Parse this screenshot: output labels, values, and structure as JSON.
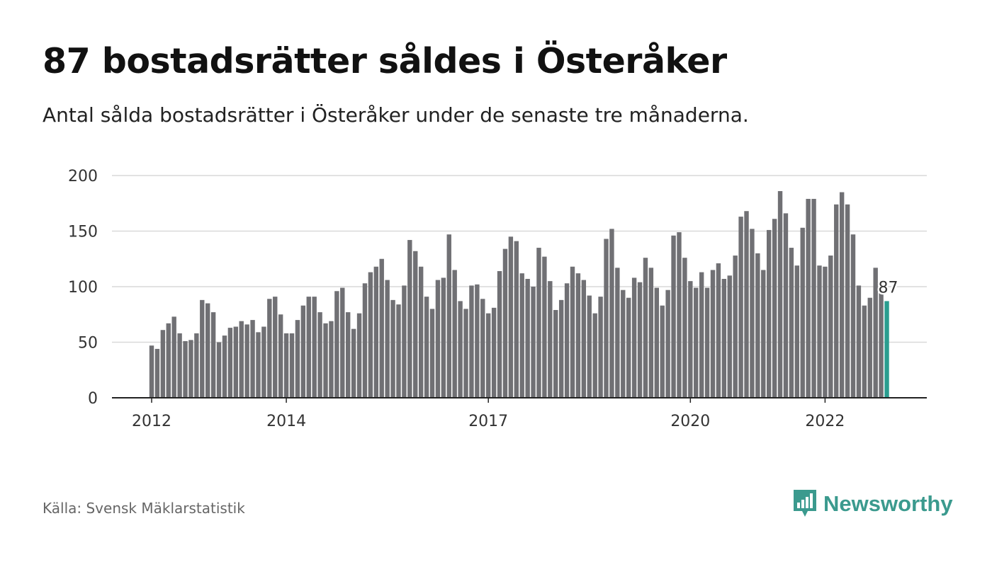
{
  "header": {
    "title": "87 bostadsrätter såldes i Österåker",
    "subtitle": "Antal sålda bostadsrätter i Österåker under de senaste tre månaderna."
  },
  "footer": {
    "source": "Källa: Svensk Mäklarstatistik",
    "brand": "Newsworthy"
  },
  "colors": {
    "bar": "#707074",
    "highlight": "#2a9d8f",
    "grid": "#d9d9d9",
    "brand": "#3b9a8e"
  },
  "icons": {
    "brand_logo": "bar-chart-speech-bubble-icon"
  },
  "chart_data": {
    "type": "bar",
    "title": "87 bostadsrätter såldes i Österåker",
    "subtitle": "Antal sålda bostadsrätter i Österåker under de senaste tre månaderna.",
    "xlabel": "",
    "ylabel": "",
    "ylim": [
      0,
      200
    ],
    "yticks": [
      0,
      50,
      100,
      150,
      200
    ],
    "grid": true,
    "x_start": "2012-01",
    "x_ticks": [
      {
        "label": "2012",
        "month": "2012-01"
      },
      {
        "label": "2014",
        "month": "2014-01"
      },
      {
        "label": "2017",
        "month": "2017-01"
      },
      {
        "label": "2020",
        "month": "2020-01"
      },
      {
        "label": "2022",
        "month": "2022-01"
      }
    ],
    "values": [
      47,
      44,
      61,
      67,
      73,
      58,
      51,
      52,
      58,
      88,
      85,
      77,
      50,
      56,
      63,
      64,
      69,
      66,
      70,
      59,
      64,
      89,
      91,
      75,
      58,
      58,
      70,
      83,
      91,
      91,
      77,
      67,
      69,
      96,
      99,
      77,
      62,
      76,
      103,
      113,
      118,
      125,
      106,
      88,
      84,
      101,
      142,
      132,
      118,
      91,
      80,
      106,
      108,
      147,
      115,
      87,
      80,
      101,
      102,
      89,
      76,
      81,
      114,
      134,
      145,
      141,
      112,
      107,
      100,
      135,
      127,
      105,
      79,
      88,
      103,
      118,
      112,
      106,
      92,
      76,
      91,
      143,
      152,
      117,
      97,
      90,
      108,
      104,
      126,
      117,
      99,
      83,
      97,
      146,
      149,
      126,
      105,
      99,
      113,
      99,
      115,
      121,
      107,
      110,
      128,
      163,
      168,
      152,
      130,
      115,
      151,
      161,
      186,
      166,
      135,
      119,
      153,
      179,
      179,
      119,
      118,
      128,
      174,
      185,
      174,
      147,
      101,
      83,
      90,
      117,
      95,
      87
    ],
    "highlight_last": true,
    "annotation": {
      "text": "87",
      "value": 87
    }
  }
}
